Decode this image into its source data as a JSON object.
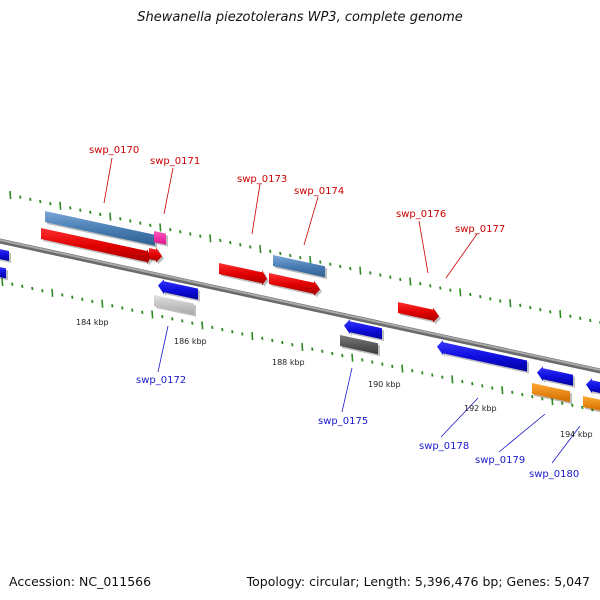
{
  "title": "Shewanella piezotolerans WP3, complete genome",
  "footer": {
    "accession": "Accession: NC_011566",
    "summary": "Topology: circular; Length: 5,396,476 bp; Genes: 5,047"
  },
  "colors": {
    "backbone": "#8a8a8a",
    "tick": "#2e8b22",
    "forward_label": "#cc0000",
    "reverse_label": "#1a1acc",
    "red": "#e00000",
    "steelblue": "#4a7fb5",
    "magenta": "#ff1fa0",
    "blue": "#1010e0",
    "lightgray": "#c0c0c0",
    "darkgray": "#5a5a5a",
    "orange": "#ff8c00"
  },
  "gene_labels": [
    {
      "id": "swp_0170",
      "text": "swp_0170",
      "strand": "forward"
    },
    {
      "id": "swp_0171",
      "text": "swp_0171",
      "strand": "forward"
    },
    {
      "id": "swp_0173",
      "text": "swp_0173",
      "strand": "forward"
    },
    {
      "id": "swp_0174",
      "text": "swp_0174",
      "strand": "forward"
    },
    {
      "id": "swp_0176",
      "text": "swp_0176",
      "strand": "forward"
    },
    {
      "id": "swp_0177",
      "text": "swp_0177",
      "strand": "forward"
    },
    {
      "id": "swp_0172",
      "text": "swp_0172",
      "strand": "reverse"
    },
    {
      "id": "swp_0175",
      "text": "swp_0175",
      "strand": "reverse"
    },
    {
      "id": "swp_0178",
      "text": "swp_0178",
      "strand": "reverse"
    },
    {
      "id": "swp_0179",
      "text": "swp_0179",
      "strand": "reverse"
    },
    {
      "id": "swp_0180",
      "text": "swp_0180",
      "strand": "reverse"
    }
  ],
  "kbp_labels": [
    "184 kbp",
    "186 kbp",
    "188 kbp",
    "190 kbp",
    "192 kbp",
    "194 kbp"
  ]
}
